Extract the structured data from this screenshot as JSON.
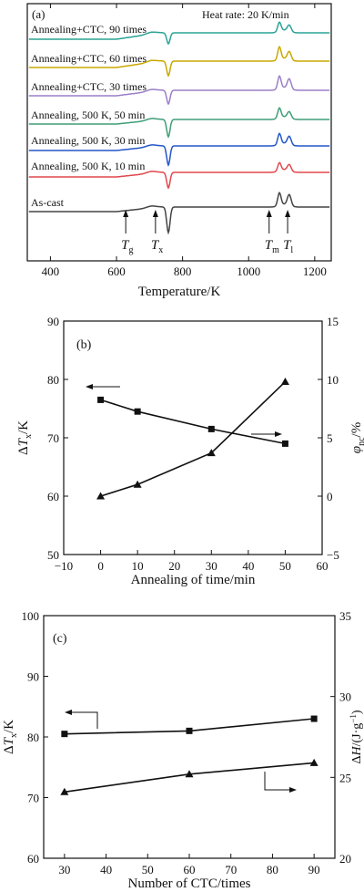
{
  "chart_data": [
    {
      "type": "line",
      "panel_label": "(a)",
      "annotation": "Heat rate: 20 K/min",
      "xlabel": "Temperature/K",
      "xlim": [
        330,
        1250
      ],
      "xticks": [
        400,
        600,
        800,
        1000,
        1200
      ],
      "series": [
        {
          "name": "Annealing+CTC, 90 times",
          "color": "#2aa394"
        },
        {
          "name": "Annealing+CTC, 60 times",
          "color": "#c9a800"
        },
        {
          "name": "Annealing+CTC, 30 times",
          "color": "#9b7fc8"
        },
        {
          "name": "Annealing, 500 K, 50 min",
          "color": "#3f9e78"
        },
        {
          "name": "Annealing, 500 K, 30 min",
          "color": "#2456c8"
        },
        {
          "name": "Annealing, 500 K, 10 min",
          "color": "#e0484c"
        },
        {
          "name": "As-cast",
          "color": "#444444"
        }
      ],
      "markers": [
        {
          "symbol": "T",
          "sub": "g",
          "x": 628
        },
        {
          "symbol": "T",
          "sub": "x",
          "x": 718
        },
        {
          "symbol": "T",
          "sub": "m",
          "x": 1062
        },
        {
          "symbol": "T",
          "sub": "l",
          "x": 1118
        }
      ]
    },
    {
      "type": "line",
      "panel_label": "(b)",
      "xlabel": "Annealing of time/min",
      "ylabel_left": "ΔTx/K",
      "ylabel_right": "φnc/%",
      "xlim": [
        -10,
        60
      ],
      "ylim_left": [
        50,
        90
      ],
      "ylim_right": [
        -5,
        15
      ],
      "xticks": [
        -10,
        0,
        10,
        20,
        30,
        40,
        50,
        60
      ],
      "yticks_left": [
        50,
        60,
        70,
        80,
        90
      ],
      "yticks_right": [
        -5,
        0,
        5,
        10,
        15
      ],
      "series": [
        {
          "marker": "square",
          "axis": "left",
          "x": [
            0,
            10,
            30,
            50
          ],
          "values": [
            76.5,
            74.5,
            71.5,
            69
          ]
        },
        {
          "marker": "triangle",
          "axis": "right",
          "x": [
            0,
            10,
            30,
            50
          ],
          "values": [
            0,
            1,
            3.7,
            9.8
          ]
        }
      ]
    },
    {
      "type": "line",
      "panel_label": "(c)",
      "xlabel": "Number of CTC/times",
      "ylabel_left": "ΔTx/K",
      "ylabel_right": "ΔH/(J·g⁻¹)",
      "xlim": [
        25,
        95
      ],
      "ylim_left": [
        60,
        100
      ],
      "ylim_right": [
        20,
        35
      ],
      "xticks": [
        30,
        40,
        50,
        60,
        70,
        80,
        90
      ],
      "yticks_left": [
        60,
        70,
        80,
        90,
        100
      ],
      "yticks_right": [
        20,
        25,
        30,
        35
      ],
      "series": [
        {
          "marker": "square",
          "axis": "left",
          "x": [
            30,
            60,
            90
          ],
          "values": [
            80.5,
            81,
            83
          ]
        },
        {
          "marker": "triangle",
          "axis": "right",
          "x": [
            30,
            60,
            90
          ],
          "values": [
            24.1,
            25.2,
            25.9
          ]
        }
      ]
    }
  ]
}
